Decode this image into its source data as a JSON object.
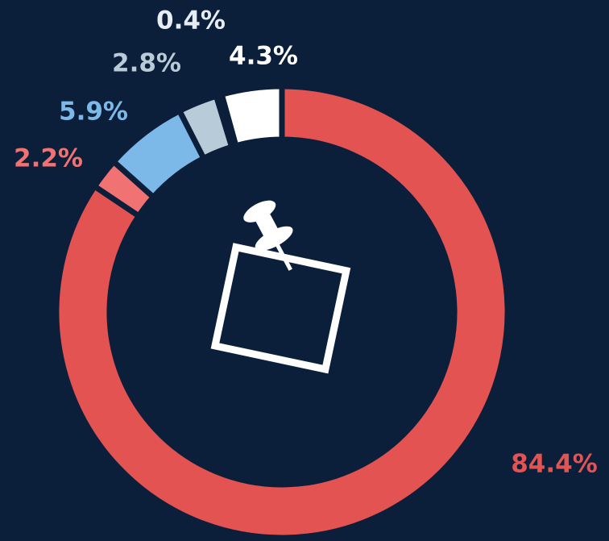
{
  "chart_data": {
    "type": "donut",
    "values": [
      84.4,
      2.2,
      5.9,
      2.8,
      0.4,
      4.3
    ],
    "value_labels": [
      "84.4%",
      "2.2%",
      "5.9%",
      "2.8%",
      "0.4%",
      "4.3%"
    ],
    "colors": [
      "#e35352",
      "#f07272",
      "#7db9e8",
      "#b7cbd8",
      "#e6edf2",
      "#ffffff"
    ],
    "icon_label": "JOBS"
  }
}
